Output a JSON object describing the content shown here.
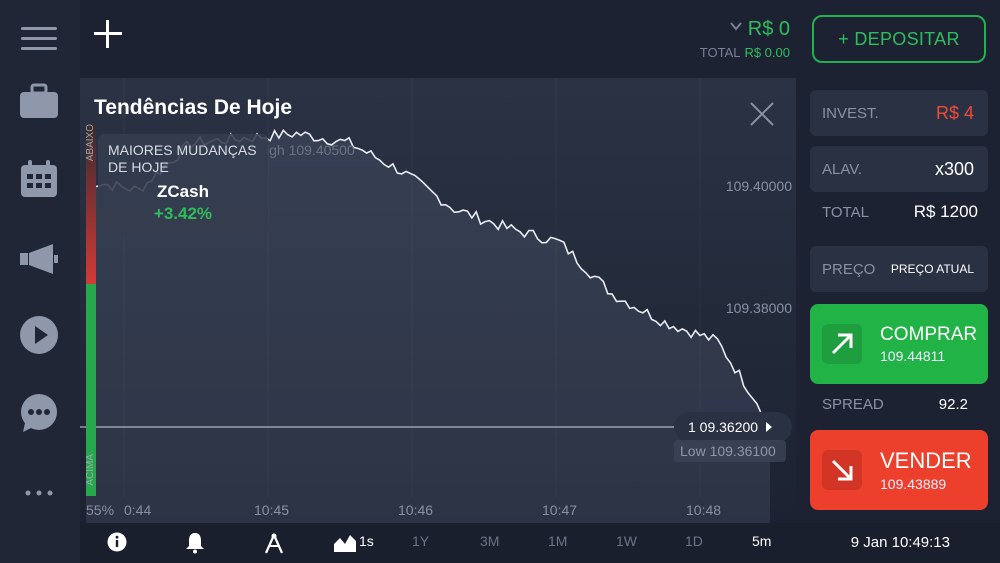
{
  "header": {
    "balance": "R$ 0",
    "total_label": "TOTAL",
    "total_value": "R$ 0.00",
    "deposit_label": "+ DEPOSITAR"
  },
  "chart": {
    "title": "Tendências De Hoje",
    "movers_title": "MAIORES MUDANÇAS DE HOJE",
    "movers_asset": "ZCash",
    "movers_change": "+3.42%",
    "high_label": "igh 109.40500",
    "current_price": "1 09.36200",
    "low_label": "Low 109.36100",
    "y_ticks": [
      "109.40000",
      "109.38000"
    ],
    "x_ticks": [
      "0:44",
      "10:45",
      "10:46",
      "10:47",
      "10:48"
    ],
    "sentiment_pct": "55%",
    "sentiment_top": "ABAIXO",
    "sentiment_bottom": "ACIMA"
  },
  "chart_data": {
    "type": "line",
    "x": [
      "10:44:00",
      "10:44:30",
      "10:45:00",
      "10:45:30",
      "10:46:00",
      "10:46:20",
      "10:46:40",
      "10:47:00",
      "10:47:20",
      "10:47:40",
      "10:48:00",
      "10:48:20",
      "10:48:40",
      "10:48:50"
    ],
    "series": [
      {
        "values": [
          109.397,
          109.396,
          109.401,
          109.4015,
          109.402,
          109.401,
          109.398,
          109.394,
          109.392,
          109.3905,
          109.385,
          109.382,
          109.38,
          109.3715
        ]
      }
    ],
    "ylim": [
      109.36,
      109.41
    ],
    "y_ticks": [
      109.38,
      109.4
    ],
    "current_price": 109.362,
    "high": 109.405,
    "low": 109.361,
    "sentiment": 55
  },
  "panel": {
    "invest_label": "INVEST.",
    "invest_value": "R$ 4",
    "leverage_label": "ALAV.",
    "leverage_value": "x300",
    "total_label": "TOTAL",
    "total_value": "R$ 1200",
    "price_label": "PREÇO",
    "price_value": "PREÇO ATUAL",
    "buy_label": "COMPRAR",
    "buy_price": "109.44811",
    "spread_label": "SPREAD",
    "spread_value": "92.2",
    "sell_label": "VENDER",
    "sell_price": "109.43889"
  },
  "bottom": {
    "interval": "1s",
    "periods": [
      "1Y",
      "3M",
      "1M",
      "1W",
      "1D",
      "5m"
    ],
    "active_period": "5m",
    "datetime": "9 Jan 10:49:13"
  },
  "icons": [
    "menu-icon",
    "briefcase-icon",
    "calendar-icon",
    "megaphone-icon",
    "play-icon",
    "chat-icon",
    "more-icon"
  ],
  "colors": {
    "accent_green": "#2ebd5b",
    "accent_red": "#ec3f2c",
    "background": "#1c2130"
  }
}
